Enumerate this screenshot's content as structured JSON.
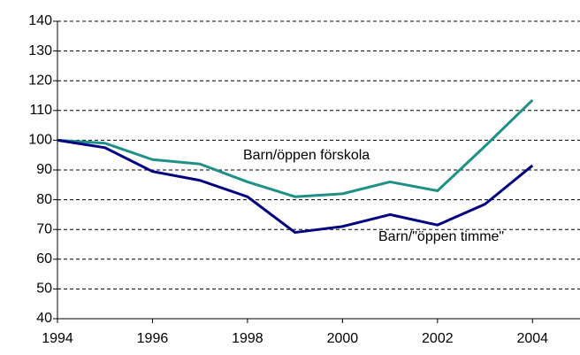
{
  "chart_data": {
    "type": "line",
    "x": [
      1994,
      1995,
      1996,
      1997,
      1998,
      1999,
      2000,
      2001,
      2002,
      2003,
      2004
    ],
    "series": [
      {
        "name": "Barn/öppen förskola",
        "color": "#1f9088",
        "values": [
          100,
          99,
          93.5,
          92,
          86,
          81,
          82,
          86,
          83,
          98,
          113.5
        ]
      },
      {
        "name": "Barn/\"öppen timme\"",
        "color": "#000080",
        "values": [
          100,
          97.5,
          89.5,
          86.5,
          81,
          69,
          71,
          75,
          71.5,
          78.5,
          91.5
        ]
      }
    ],
    "xlim": [
      1994,
      2005
    ],
    "xticks": [
      1994,
      1996,
      1998,
      2000,
      2002,
      2004
    ],
    "ylim": [
      40,
      140
    ],
    "yticks": [
      40,
      50,
      60,
      70,
      80,
      90,
      100,
      110,
      120,
      130,
      140
    ],
    "grid": true
  }
}
